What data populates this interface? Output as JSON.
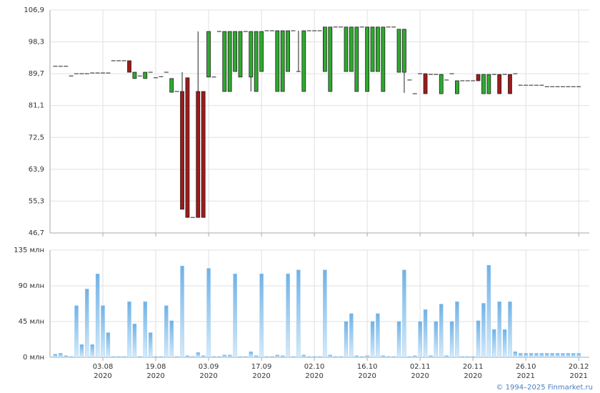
{
  "chart_data": [
    {
      "type": "candlestick",
      "ylim": [
        46.7,
        106.9
      ],
      "yticks": [
        {
          "value": 46.7,
          "label": "46,7"
        },
        {
          "value": 55.3,
          "label": "55,3"
        },
        {
          "value": 63.9,
          "label": "63,9"
        },
        {
          "value": 72.5,
          "label": "72,5"
        },
        {
          "value": 81.1,
          "label": "81,1"
        },
        {
          "value": 89.7,
          "label": "89,7"
        },
        {
          "value": 98.3,
          "label": "98,3"
        },
        {
          "value": 106.9,
          "label": "106,9"
        }
      ],
      "xlim": [
        -1,
        101
      ],
      "xticks": [
        9,
        19,
        29,
        39,
        49,
        59,
        69,
        79,
        89,
        99
      ],
      "grid": true,
      "up_color": "#2eaa2e",
      "down_color": "#9e1a1a",
      "candles": [
        [
          91.7,
          91.7,
          91.7,
          91.7
        ],
        [
          91.7,
          91.7,
          91.7,
          91.7
        ],
        [
          91.7,
          91.7,
          91.7,
          91.7
        ],
        [
          89.1,
          89.1,
          89.1,
          89.1
        ],
        [
          89.7,
          89.7,
          89.7,
          89.7
        ],
        [
          89.7,
          89.7,
          89.7,
          89.7
        ],
        [
          89.7,
          89.7,
          89.7,
          89.7
        ],
        [
          89.9,
          89.9,
          89.9,
          89.9
        ],
        [
          89.9,
          89.9,
          89.9,
          89.9
        ],
        [
          89.9,
          89.9,
          89.9,
          89.9
        ],
        [
          89.9,
          89.9,
          89.9,
          89.9
        ],
        [
          93.2,
          93.2,
          93.2,
          93.2
        ],
        [
          93.2,
          93.2,
          93.2,
          93.2
        ],
        [
          93.2,
          93.2,
          93.2,
          93.2
        ],
        [
          93.2,
          93.2,
          90.1,
          90.1
        ],
        [
          88.4,
          90.1,
          88.4,
          90.1
        ],
        [
          89.1,
          89.1,
          89.1,
          89.1
        ],
        [
          88.4,
          90.1,
          88.4,
          90.1
        ],
        [
          90.1,
          90.1,
          90.1,
          90.1
        ],
        [
          88.6,
          88.6,
          88.6,
          88.6
        ],
        [
          88.9,
          88.9,
          88.9,
          88.9
        ],
        [
          90.1,
          90.1,
          90.1,
          90.1
        ],
        [
          84.7,
          88.4,
          84.7,
          88.4
        ],
        [
          84.9,
          84.9,
          84.9,
          84.9
        ],
        [
          84.9,
          90.1,
          53.1,
          53.1
        ],
        [
          88.6,
          88.6,
          50.9,
          50.9
        ],
        [
          50.9,
          50.9,
          50.9,
          50.9
        ],
        [
          84.9,
          101.1,
          50.9,
          50.9
        ],
        [
          84.9,
          84.9,
          50.9,
          50.9
        ],
        [
          88.8,
          101.1,
          88.8,
          101.1
        ],
        [
          88.8,
          88.8,
          88.8,
          88.8
        ],
        [
          101.1,
          101.1,
          101.1,
          101.1
        ],
        [
          84.9,
          101.1,
          84.9,
          101.1
        ],
        [
          84.9,
          101.1,
          84.9,
          101.1
        ],
        [
          90.3,
          101.1,
          90.3,
          101.1
        ],
        [
          88.8,
          101.1,
          88.8,
          101.1
        ],
        [
          101.1,
          101.1,
          101.1,
          101.1
        ],
        [
          88.8,
          101.1,
          84.9,
          101.1
        ],
        [
          84.9,
          101.1,
          84.9,
          101.1
        ],
        [
          90.3,
          101.1,
          90.3,
          101.1
        ],
        [
          101.3,
          101.3,
          101.3,
          101.3
        ],
        [
          101.3,
          101.3,
          101.3,
          101.3
        ],
        [
          84.9,
          101.3,
          84.9,
          101.3
        ],
        [
          84.9,
          101.3,
          84.9,
          101.3
        ],
        [
          90.3,
          101.3,
          90.3,
          101.3
        ],
        [
          101.3,
          101.3,
          101.3,
          101.3
        ],
        [
          90.3,
          101.3,
          90.3,
          90.3
        ],
        [
          84.9,
          101.3,
          84.9,
          101.3
        ],
        [
          101.3,
          101.3,
          101.3,
          101.3
        ],
        [
          101.3,
          101.3,
          101.3,
          101.3
        ],
        [
          101.3,
          101.3,
          101.3,
          101.3
        ],
        [
          90.3,
          102.3,
          90.3,
          102.3
        ],
        [
          84.9,
          102.3,
          84.9,
          102.3
        ],
        [
          102.3,
          102.3,
          102.3,
          102.3
        ],
        [
          102.3,
          102.3,
          102.3,
          102.3
        ],
        [
          90.3,
          102.3,
          90.3,
          102.3
        ],
        [
          90.3,
          102.3,
          90.3,
          102.3
        ],
        [
          84.9,
          102.3,
          84.9,
          102.3
        ],
        [
          102.3,
          102.3,
          102.3,
          102.3
        ],
        [
          84.9,
          102.3,
          84.9,
          102.3
        ],
        [
          90.3,
          102.3,
          90.3,
          102.3
        ],
        [
          90.3,
          102.3,
          90.3,
          102.3
        ],
        [
          84.9,
          102.3,
          84.9,
          102.3
        ],
        [
          102.3,
          102.3,
          102.3,
          102.3
        ],
        [
          102.3,
          102.3,
          102.3,
          102.3
        ],
        [
          90.1,
          101.7,
          90.1,
          101.7
        ],
        [
          90.1,
          101.7,
          84.5,
          101.7
        ],
        [
          88.0,
          88.0,
          88.0,
          88.0
        ],
        [
          84.3,
          84.3,
          84.3,
          84.3
        ],
        [
          89.7,
          89.7,
          89.7,
          89.7
        ],
        [
          89.7,
          89.7,
          84.3,
          84.3
        ],
        [
          89.5,
          89.5,
          89.5,
          89.5
        ],
        [
          89.5,
          89.5,
          89.5,
          89.5
        ],
        [
          84.3,
          89.5,
          84.3,
          89.5
        ],
        [
          88.0,
          88.0,
          88.0,
          88.0
        ],
        [
          89.7,
          89.7,
          89.7,
          89.7
        ],
        [
          84.3,
          87.8,
          84.3,
          87.8
        ],
        [
          87.8,
          87.8,
          87.8,
          87.8
        ],
        [
          87.8,
          87.8,
          87.8,
          87.8
        ],
        [
          87.8,
          87.8,
          87.8,
          87.8
        ],
        [
          89.5,
          89.5,
          87.8,
          87.8
        ],
        [
          84.3,
          89.5,
          84.3,
          89.5
        ],
        [
          84.3,
          89.5,
          84.3,
          89.5
        ],
        [
          89.5,
          89.5,
          89.5,
          89.5
        ],
        [
          89.5,
          89.5,
          84.3,
          84.3
        ],
        [
          89.5,
          89.5,
          89.5,
          89.5
        ],
        [
          89.5,
          89.5,
          84.3,
          84.3
        ],
        [
          89.7,
          89.7,
          89.7,
          89.7
        ],
        [
          86.6,
          86.6,
          86.6,
          86.6
        ],
        [
          86.6,
          86.6,
          86.6,
          86.6
        ],
        [
          86.6,
          86.6,
          86.6,
          86.6
        ],
        [
          86.6,
          86.6,
          86.6,
          86.6
        ],
        [
          86.6,
          86.6,
          86.6,
          86.6
        ],
        [
          86.2,
          86.2,
          86.2,
          86.2
        ],
        [
          86.2,
          86.2,
          86.2,
          86.2
        ],
        [
          86.2,
          86.2,
          86.2,
          86.2
        ],
        [
          86.2,
          86.2,
          86.2,
          86.2
        ],
        [
          86.2,
          86.2,
          86.2,
          86.2
        ],
        [
          86.2,
          86.2,
          86.2,
          86.2
        ],
        [
          86.2,
          86.2,
          86.2,
          86.2
        ]
      ]
    },
    {
      "type": "bar",
      "ylim": [
        0,
        135
      ],
      "yticks": [
        {
          "value": 0,
          "label": "0 млн"
        },
        {
          "value": 45,
          "label": "45 млн"
        },
        {
          "value": 90,
          "label": "90 млн"
        },
        {
          "value": 135,
          "label": "135 млн"
        }
      ],
      "xlim": [
        -1,
        101
      ],
      "xticks": [
        {
          "value": 9,
          "label": "03.08",
          "year": "2020"
        },
        {
          "value": 19,
          "label": "19.08",
          "year": "2020"
        },
        {
          "value": 29,
          "label": "03.09",
          "year": "2020"
        },
        {
          "value": 39,
          "label": "17.09",
          "year": "2020"
        },
        {
          "value": 49,
          "label": "02.10",
          "year": "2020"
        },
        {
          "value": 59,
          "label": "16.10",
          "year": "2020"
        },
        {
          "value": 69,
          "label": "02.11",
          "year": "2020"
        },
        {
          "value": 79,
          "label": "20.11",
          "year": "2020"
        },
        {
          "value": 89,
          "label": "26.10",
          "year": "2021"
        },
        {
          "value": 99,
          "label": "20.12",
          "year": "2021"
        }
      ],
      "grid": true,
      "color": "#7ab8e8",
      "values": [
        4,
        5,
        2,
        1,
        65,
        16,
        86,
        16,
        105,
        65,
        31,
        1,
        1,
        1,
        70,
        42,
        1,
        70,
        31,
        1,
        1,
        65,
        46,
        1,
        115,
        2,
        1,
        6,
        2,
        112,
        1,
        1,
        3,
        3,
        105,
        1,
        1,
        7,
        2,
        105,
        1,
        1,
        3,
        2,
        105,
        1,
        110,
        3,
        1,
        1,
        1,
        110,
        3,
        1,
        1,
        45,
        55,
        2,
        1,
        2,
        45,
        55,
        2,
        1,
        1,
        45,
        110,
        1,
        2,
        45,
        60,
        2,
        45,
        67,
        2,
        45,
        70,
        1,
        1,
        1,
        46,
        68,
        116,
        35,
        70,
        35,
        70,
        7,
        5,
        5,
        5,
        5,
        5,
        5,
        5,
        5,
        5,
        5,
        5,
        5
      ]
    },
    {
      "type": "footer",
      "text": "© 1994–2025 Finmarket.ru"
    }
  ]
}
